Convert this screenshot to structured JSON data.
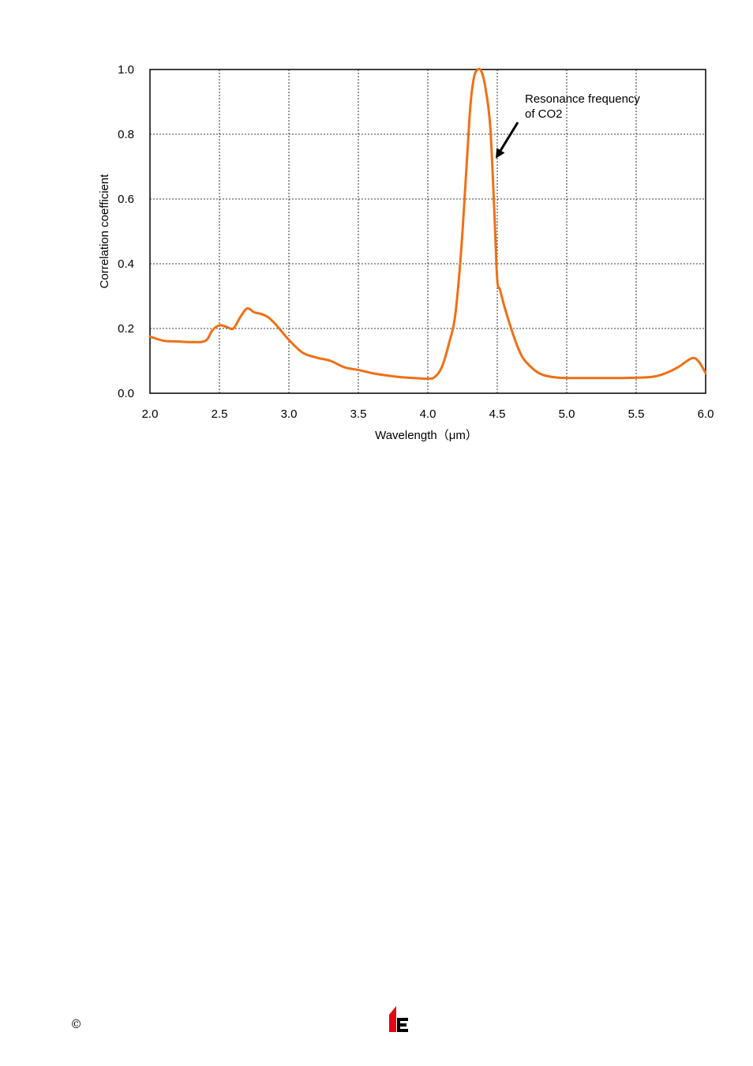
{
  "chart_data": {
    "type": "line",
    "xlabel": "Wavelength（μm）",
    "ylabel": "Correlation coefficient",
    "xlim": [
      2.0,
      6.0
    ],
    "ylim": [
      0.0,
      1.0
    ],
    "xticks": [
      "2.0",
      "2.5",
      "3.0",
      "3.5",
      "4.0",
      "4.5",
      "5.0",
      "5.5",
      "6.0"
    ],
    "yticks": [
      "0.0",
      "0.2",
      "0.4",
      "0.6",
      "0.8",
      "1.0"
    ],
    "grid": true,
    "series": [
      {
        "color": "#f07014",
        "x": [
          2.0,
          2.1,
          2.2,
          2.3,
          2.4,
          2.45,
          2.5,
          2.55,
          2.6,
          2.65,
          2.7,
          2.75,
          2.8,
          2.85,
          2.9,
          3.0,
          3.1,
          3.2,
          3.3,
          3.4,
          3.5,
          3.6,
          3.7,
          3.8,
          3.9,
          4.0,
          4.05,
          4.1,
          4.15,
          4.2,
          4.25,
          4.3,
          4.33,
          4.36,
          4.39,
          4.42,
          4.45,
          4.48,
          4.5,
          4.52,
          4.55,
          4.6,
          4.65,
          4.7,
          4.8,
          4.9,
          5.0,
          5.2,
          5.4,
          5.6,
          5.7,
          5.8,
          5.9,
          5.95,
          6.0
        ],
        "y": [
          0.175,
          0.162,
          0.16,
          0.158,
          0.162,
          0.195,
          0.21,
          0.205,
          0.2,
          0.235,
          0.262,
          0.25,
          0.245,
          0.235,
          0.215,
          0.165,
          0.125,
          0.11,
          0.1,
          0.08,
          0.072,
          0.062,
          0.055,
          0.05,
          0.047,
          0.045,
          0.05,
          0.08,
          0.15,
          0.25,
          0.5,
          0.85,
          0.97,
          1.0,
          0.99,
          0.93,
          0.82,
          0.55,
          0.35,
          0.32,
          0.27,
          0.2,
          0.14,
          0.1,
          0.062,
          0.05,
          0.047,
          0.047,
          0.047,
          0.05,
          0.06,
          0.08,
          0.108,
          0.098,
          0.062
        ]
      }
    ],
    "annotation": {
      "line1": "Resonance frequency",
      "line2": "of CO2",
      "arrow_x": 4.5,
      "arrow_y": 0.73
    }
  },
  "footer": {
    "copyright": "©"
  },
  "colors": {
    "series": "#f07014",
    "logo_red": "#e30613",
    "logo_black": "#000000"
  }
}
